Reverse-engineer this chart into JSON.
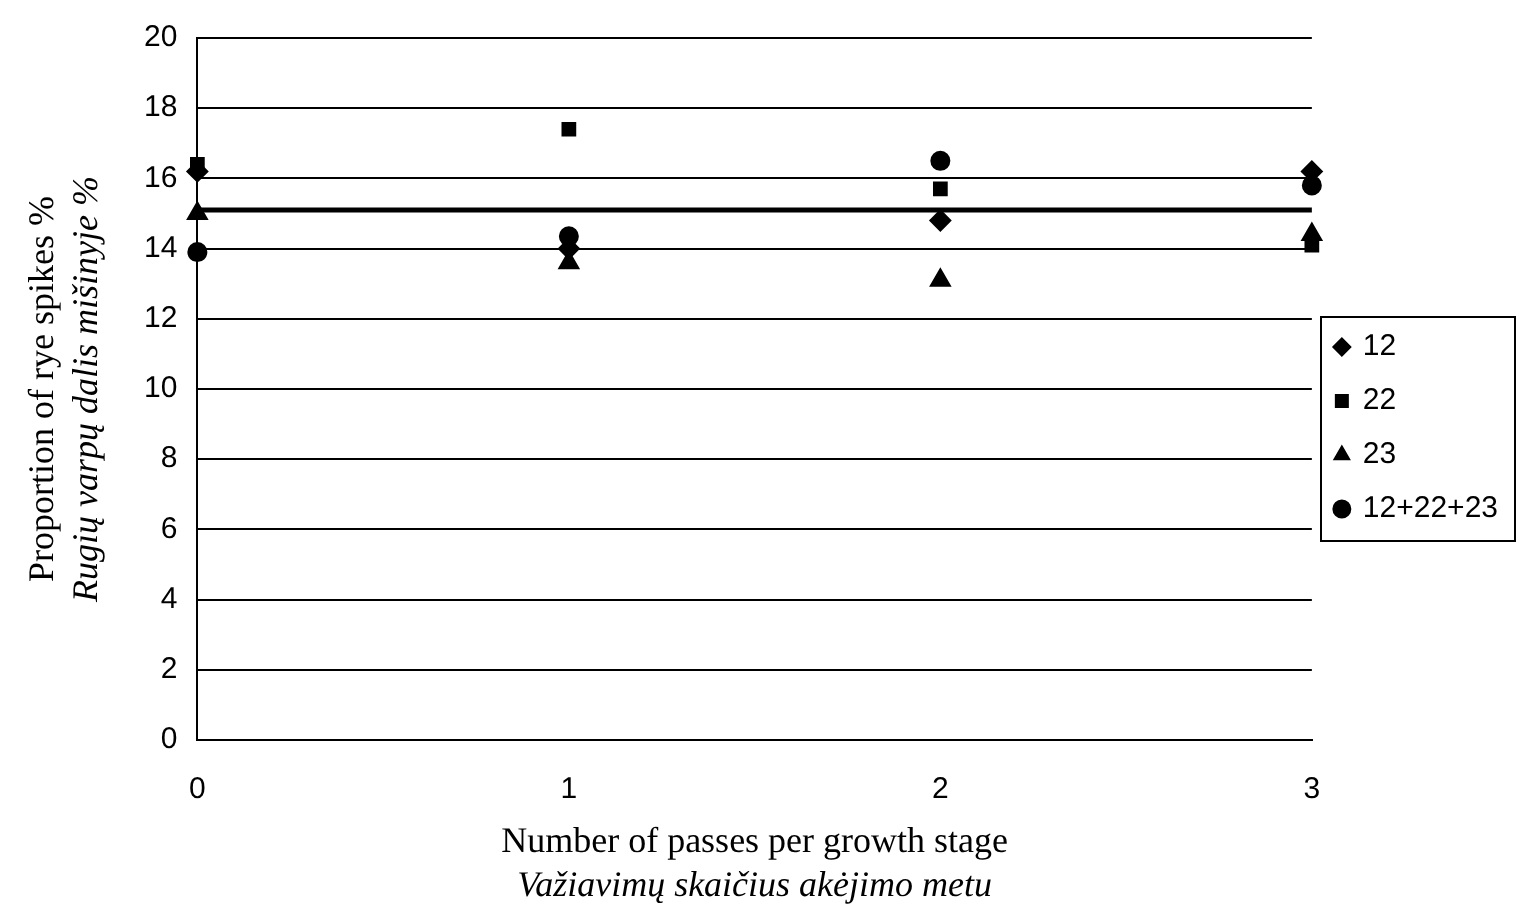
{
  "chart_data": {
    "type": "scatter",
    "xlabel": "Number of passes per growth stage\nVažiavimų skaičius akėjimo metu",
    "ylabel": "Proportion of rye spikes %\nRugių varpų dalis mišinyje %",
    "x": [
      0,
      1,
      2,
      3
    ],
    "xlim": [
      0,
      3
    ],
    "xticks": [
      0,
      1,
      2,
      3
    ],
    "ylim": [
      0,
      20
    ],
    "yticks": [
      0,
      2,
      4,
      6,
      8,
      10,
      12,
      14,
      16,
      18,
      20
    ],
    "grid": "y",
    "legend": "right",
    "series": [
      {
        "name": "12",
        "color": "#000000",
        "marker": "diamond",
        "values": [
          16.2,
          14.0,
          14.8,
          16.2
        ]
      },
      {
        "name": "22",
        "color": "#000000",
        "marker": "square",
        "values": [
          16.4,
          17.4,
          15.7,
          14.1
        ]
      },
      {
        "name": "23",
        "color": "#000000",
        "marker": "triangle",
        "values": [
          15.0,
          13.6,
          13.1,
          14.4
        ]
      },
      {
        "name": "12+22+23",
        "color": "#000000",
        "marker": "circle",
        "values": [
          13.9,
          14.35,
          16.5,
          15.8
        ]
      }
    ],
    "ref_lines": [
      {
        "axis": "y",
        "value": 15.1,
        "color": "#000000"
      }
    ]
  }
}
